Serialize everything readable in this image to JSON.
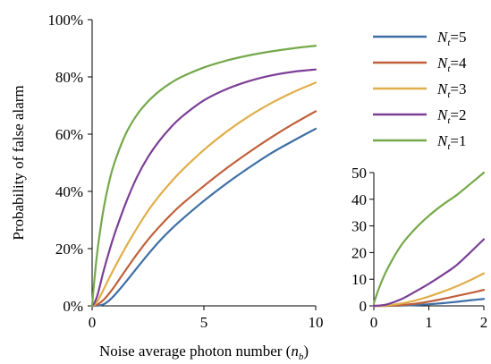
{
  "chart_data": [
    {
      "type": "line",
      "title": "",
      "xlabel": "Noise average photon number (n_b)",
      "xlabel_parts": {
        "main": "Noise average photon number (",
        "var": "n",
        "sub": "b",
        "close": ")"
      },
      "ylabel": "Probability of false alarm",
      "xlim": [
        0,
        10
      ],
      "ylim": [
        0,
        1
      ],
      "x_ticks": [
        0,
        5,
        10
      ],
      "x_tick_labels": [
        "0",
        "5",
        "10"
      ],
      "y_ticks": [
        0,
        0.2,
        0.4,
        0.6,
        0.8,
        1.0
      ],
      "y_tick_labels": [
        "0%",
        "20%",
        "40%",
        "60%",
        "80%",
        "100%"
      ],
      "grid": false,
      "legend_position": "right",
      "x": [
        0,
        0.1,
        0.25,
        0.5,
        0.75,
        1,
        1.5,
        2,
        2.5,
        3,
        3.5,
        4,
        5,
        6,
        7,
        8,
        9,
        10
      ],
      "series": [
        {
          "name": "N_t=5",
          "legend": {
            "var": "N",
            "sub": "t",
            "rest": "=5"
          },
          "color": "#3d6fa5",
          "values": [
            0,
            0.0001,
            0.001,
            0.005,
            0.018,
            0.037,
            0.083,
            0.132,
            0.18,
            0.225,
            0.265,
            0.301,
            0.367,
            0.427,
            0.482,
            0.533,
            0.577,
            0.619
          ]
        },
        {
          "name": "N_t=4",
          "legend": {
            "var": "N",
            "sub": "t",
            "rest": "=4"
          },
          "color": "#c0603a",
          "values": [
            0,
            0.0005,
            0.005,
            0.02,
            0.042,
            0.068,
            0.125,
            0.18,
            0.231,
            0.276,
            0.317,
            0.354,
            0.419,
            0.48,
            0.536,
            0.588,
            0.636,
            0.68
          ]
        },
        {
          "name": "N_t=3",
          "legend": {
            "var": "N",
            "sub": "t",
            "rest": "=3"
          },
          "color": "#e0ae4a",
          "values": [
            0,
            0.003,
            0.018,
            0.055,
            0.095,
            0.133,
            0.205,
            0.271,
            0.332,
            0.384,
            0.43,
            0.472,
            0.545,
            0.608,
            0.662,
            0.708,
            0.747,
            0.78
          ]
        },
        {
          "name": "N_t=2",
          "legend": {
            "var": "N",
            "sub": "t",
            "rest": "=2"
          },
          "color": "#7b3f96",
          "values": [
            0,
            0.01,
            0.04,
            0.118,
            0.187,
            0.25,
            0.358,
            0.449,
            0.52,
            0.576,
            0.622,
            0.66,
            0.718,
            0.757,
            0.785,
            0.805,
            0.818,
            0.826
          ]
        },
        {
          "name": "N_t=1",
          "legend": {
            "var": "N",
            "sub": "t",
            "rest": "=1"
          },
          "color": "#75a84a",
          "values": [
            0,
            0.09,
            0.2,
            0.333,
            0.429,
            0.5,
            0.6,
            0.667,
            0.714,
            0.75,
            0.778,
            0.8,
            0.833,
            0.857,
            0.875,
            0.889,
            0.9,
            0.909
          ]
        }
      ]
    },
    {
      "type": "line",
      "title": "",
      "xlabel": "",
      "ylabel": "",
      "xlim": [
        0,
        2
      ],
      "ylim": [
        0,
        50
      ],
      "x_ticks": [
        0,
        1,
        2
      ],
      "x_tick_labels": [
        "0",
        "1",
        "2"
      ],
      "y_ticks": [
        0,
        10,
        20,
        30,
        40,
        50
      ],
      "y_tick_labels": [
        "0",
        "10",
        "20",
        "30",
        "40",
        "50"
      ],
      "grid": false,
      "x": [
        0,
        0.1,
        0.25,
        0.5,
        0.75,
        1,
        1.25,
        1.5,
        1.75,
        2
      ],
      "series": [
        {
          "name": "N_t=5",
          "color": "#3d6fa5",
          "values": [
            0,
            0,
            0,
            0.1,
            0.3,
            0.6,
            1.0,
            1.5,
            2.1,
            2.6
          ]
        },
        {
          "name": "N_t=4",
          "color": "#c0603a",
          "values": [
            0,
            0,
            0.05,
            0.3,
            0.8,
            1.6,
            2.6,
            3.7,
            4.8,
            6.0
          ]
        },
        {
          "name": "N_t=3",
          "color": "#e0ae4a",
          "values": [
            0,
            0,
            0.2,
            0.9,
            2.0,
            3.5,
            5.3,
            7.3,
            9.6,
            12.2
          ]
        },
        {
          "name": "N_t=2",
          "color": "#7b3f96",
          "values": [
            0,
            0.1,
            0.6,
            2.5,
            5.3,
            8.3,
            11.6,
            15.2,
            20.0,
            25.0
          ]
        },
        {
          "name": "N_t=1",
          "color": "#75a84a",
          "values": [
            1.0,
            7.0,
            14.0,
            22.8,
            28.9,
            33.8,
            37.9,
            41.5,
            45.7,
            50.0
          ]
        }
      ]
    }
  ]
}
